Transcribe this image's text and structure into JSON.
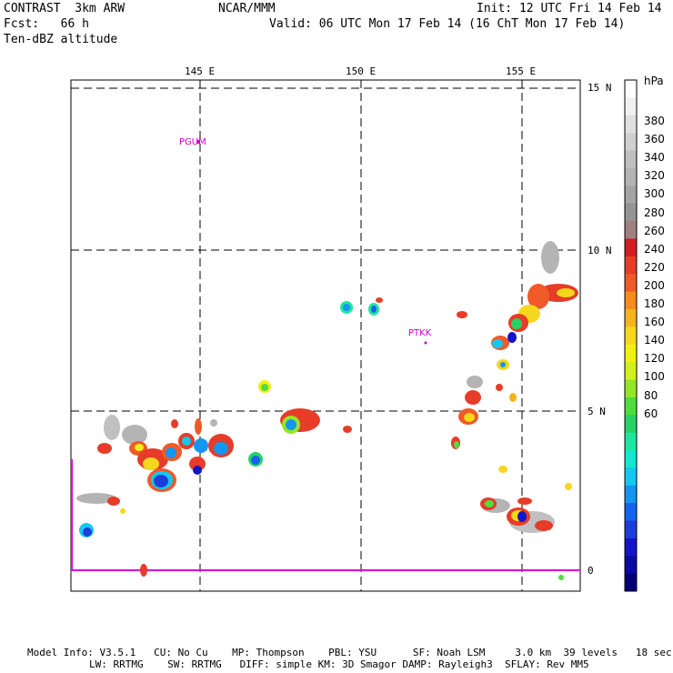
{
  "header": {
    "model": "CONTRAST  3km ARW",
    "org": "NCAR/MMM",
    "init": "Init: 12 UTC Fri 14 Feb 14",
    "fcst": "Fcst:   66 h",
    "valid": "Valid: 06 UTC Mon 17 Feb 14 (16 ChT Mon 17 Feb 14)",
    "field": "Ten-dBZ altitude"
  },
  "axes": {
    "lon_labels": [
      "145 E",
      "150 E",
      "155 E"
    ],
    "lat_labels": [
      "15 N",
      "10 N",
      "5 N",
      "0"
    ]
  },
  "stations": [
    {
      "id": "PGUM"
    },
    {
      "id": "PTKK"
    }
  ],
  "colorbar": {
    "unit": "hPa",
    "labels": [
      "380",
      "360",
      "340",
      "320",
      "300",
      "280",
      "260",
      "240",
      "220",
      "200",
      "180",
      "160",
      "140",
      "120",
      "100",
      "80",
      "60"
    ],
    "colors": [
      "#ffffff",
      "#f0f0f0",
      "#e0e0e0",
      "#d0d0d0",
      "#c0c0c0",
      "#b4b4b4",
      "#a4a4a4",
      "#949494",
      "#a08080",
      "#d21e1e",
      "#e63c28",
      "#f05a28",
      "#f58c1e",
      "#f5b41e",
      "#f5d71e",
      "#f0f014",
      "#d2f01e",
      "#96e628",
      "#50dc3c",
      "#28d264",
      "#1ee6a0",
      "#14e6d2",
      "#14c8f0",
      "#1496f0",
      "#1464f0",
      "#1e3cdc",
      "#1414c8",
      "#0a0aa0",
      "#000078"
    ]
  },
  "footer": {
    "line1": "Model Info: V3.5.1   CU: No Cu    MP: Thompson    PBL: YSU      SF: Noah LSM     3.0 km  39 levels   18 sec",
    "line2": "LW: RRTMG    SW: RRTMG   DIFF: simple KM: 3D Smagor DAMP: Rayleigh3  SFLAY: Rev MM5"
  }
}
